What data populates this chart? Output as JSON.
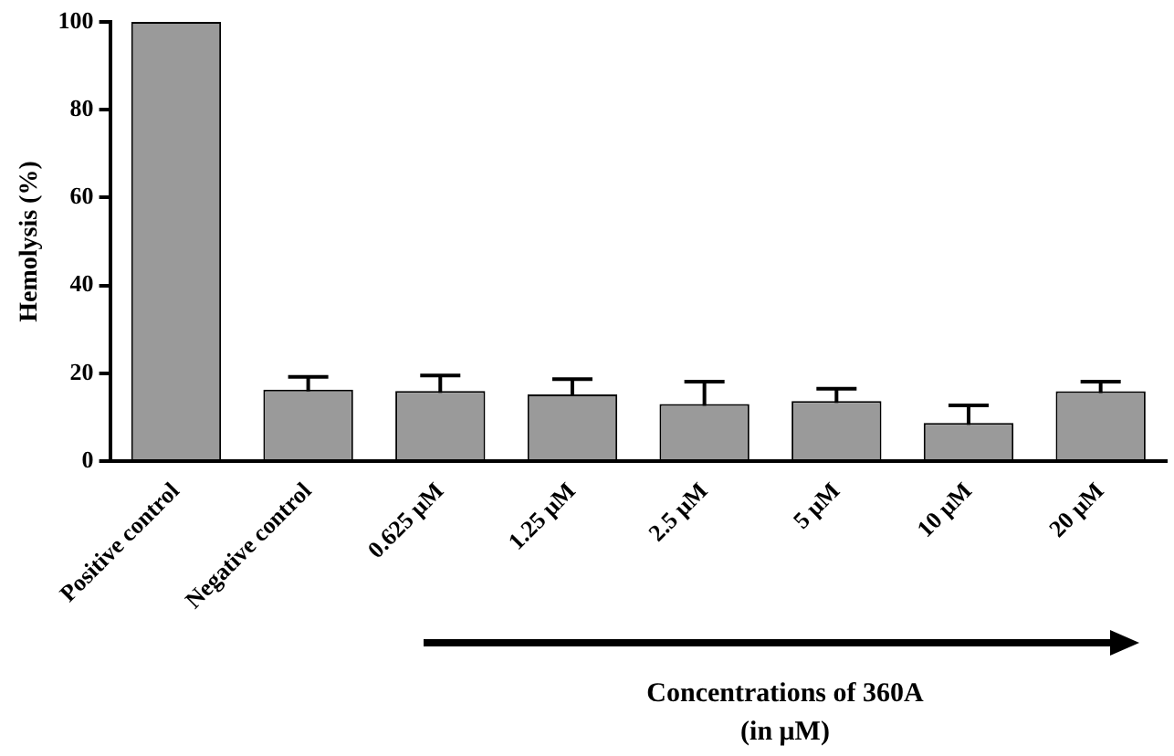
{
  "chart_data": {
    "type": "bar",
    "ylabel": "Hemolysis (%)",
    "categories": [
      "Positive control",
      "Negative control",
      "0.625 μM",
      "1.25 μM",
      "2.5 μM",
      "5 μM",
      "10 μM",
      "20 μM"
    ],
    "values": [
      100,
      16.3,
      16.0,
      15.2,
      13.0,
      13.7,
      8.7,
      15.9
    ],
    "errors": [
      null,
      2.9,
      3.5,
      3.5,
      5.1,
      2.8,
      4.0,
      2.2
    ],
    "color": "#9a9a9a",
    "ylim": [
      0,
      100
    ],
    "yticks": [
      0,
      20,
      40,
      60,
      80,
      100
    ],
    "grid": false,
    "annotations": [
      "Concentrations of 360A\n(in μM)"
    ]
  }
}
